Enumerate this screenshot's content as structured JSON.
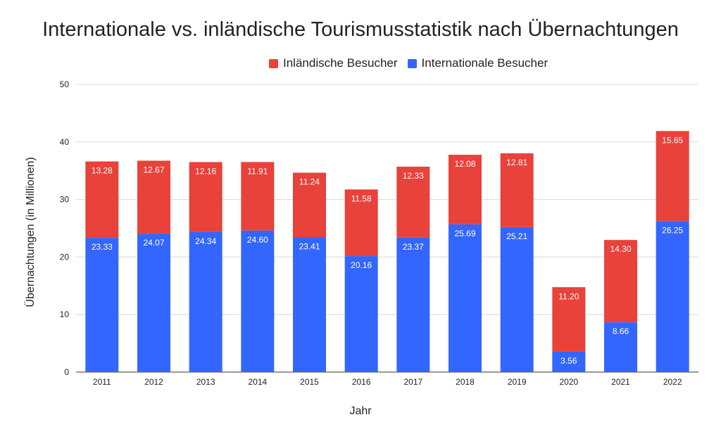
{
  "chart_data": {
    "type": "bar",
    "stacked": true,
    "title": "Internationale vs. inländische Tourismusstatistik nach Übernachtungen",
    "xlabel": "Jahr",
    "ylabel": "Übernachtungen (in Millionen)",
    "ylim": [
      0,
      50
    ],
    "yticks": [
      0,
      10,
      20,
      30,
      40,
      50
    ],
    "grid": true,
    "legend_position": "top",
    "categories": [
      "2011",
      "2012",
      "2013",
      "2014",
      "2015",
      "2016",
      "2017",
      "2018",
      "2019",
      "2020",
      "2021",
      "2022"
    ],
    "series": [
      {
        "name": "Internationale Besucher",
        "color": "#3366ff",
        "values": [
          23.33,
          24.07,
          24.34,
          24.6,
          23.41,
          20.16,
          23.37,
          25.69,
          25.21,
          3.56,
          8.66,
          26.25
        ],
        "labels": [
          "23.33",
          "24.07",
          "24.34",
          "24.60",
          "23.41",
          "20.16",
          "23.37",
          "25.69",
          "25.21",
          "3.56",
          "8.66",
          "26.25"
        ]
      },
      {
        "name": "Inländische Besucher",
        "color": "#e8423b",
        "values": [
          13.28,
          12.67,
          12.16,
          11.91,
          11.24,
          11.58,
          12.33,
          12.08,
          12.81,
          11.2,
          14.3,
          15.65
        ],
        "labels": [
          "13.28",
          "12.67",
          "12.16",
          "11.91",
          "11.24",
          "11.58",
          "12.33",
          "12.08",
          "12.81",
          "11.20",
          "14.30",
          "15.65"
        ]
      }
    ]
  }
}
